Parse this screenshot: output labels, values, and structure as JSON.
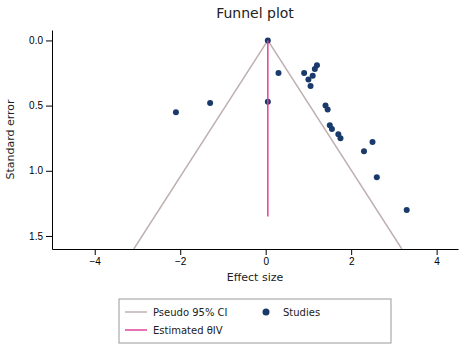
{
  "chart_data": {
    "type": "scatter",
    "title": "Funnel plot",
    "xlabel": "Effect size",
    "ylabel": "Standard error",
    "xlim": [
      -5,
      4.5
    ],
    "ylim": [
      1.6,
      -0.08
    ],
    "xticks": [
      {
        "value": -4,
        "label": "−4"
      },
      {
        "value": -2,
        "label": "−2"
      },
      0,
      2,
      4
    ],
    "yticks": [
      {
        "value": 0,
        "label": "0.0"
      },
      0.5,
      {
        "value": 1,
        "label": "1.0"
      },
      1.5
    ],
    "grid": false,
    "legend": "bottom",
    "series": [
      {
        "name": "Pseudo 95% CI",
        "type": "line",
        "line_style": "solid",
        "color": "#c0b0b0",
        "x": [
          -3.086,
          0.05,
          3.186
        ],
        "values": [
          1.6,
          0.0,
          1.6
        ]
      },
      {
        "name": "Studies",
        "type": "scatter",
        "marker": "circle",
        "color": "#1a3a6b",
        "x": [
          -1.3,
          -2.1,
          0.05,
          0.05,
          0.3,
          0.9,
          1.0,
          1.05,
          1.1,
          1.15,
          1.2,
          1.4,
          1.45,
          1.5,
          1.55,
          1.7,
          1.75,
          2.3,
          2.5,
          2.6,
          3.3
        ],
        "values": [
          0.48,
          0.55,
          0.0,
          0.47,
          0.25,
          0.25,
          0.3,
          0.35,
          0.27,
          0.22,
          0.19,
          0.5,
          0.53,
          0.65,
          0.68,
          0.72,
          0.75,
          0.85,
          0.78,
          1.05,
          1.3
        ]
      },
      {
        "name": "Estimated θIV",
        "type": "line",
        "line_style": "solid",
        "color": "#e0409a",
        "x": [
          0.05,
          0.05
        ],
        "values": [
          0.0,
          1.35
        ]
      }
    ]
  }
}
